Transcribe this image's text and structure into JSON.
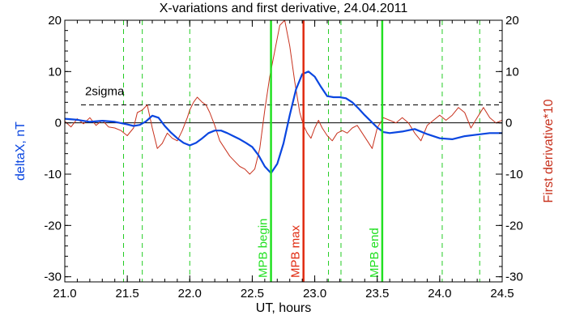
{
  "chart_data": {
    "type": "line",
    "title": "X-variations and first derivative, 24.04.2011",
    "xlabel": "UT, hours",
    "ylabel_left": "deltaX, nT",
    "ylabel_right": "First derivative*10",
    "xlim": [
      21.0,
      24.5
    ],
    "ylim": [
      -31,
      20
    ],
    "x_ticks": [
      "21.0",
      "21.5",
      "22.0",
      "22.5",
      "23.0",
      "23.5",
      "24.0",
      "24.5"
    ],
    "x_tick_values": [
      21.0,
      21.5,
      22.0,
      22.5,
      23.0,
      23.5,
      24.0,
      24.5
    ],
    "y_ticks": [
      "20",
      "10",
      "0",
      "-10",
      "-20",
      "-30"
    ],
    "y_tick_values": [
      20,
      10,
      0,
      -10,
      -20,
      -30
    ],
    "grid": false,
    "colors": {
      "deltaX": "#0a46e0",
      "derivative": "#c8321e",
      "mpb_edges": "#22e022",
      "mpb_max": "#e02a10",
      "dashed_green": "#22cc22",
      "axes": "#000000"
    },
    "threshold": {
      "label": "2sigma",
      "value": 3.5
    },
    "zero_line": 0,
    "dashed_verticals": [
      21.47,
      21.62,
      22.0,
      23.11,
      23.21,
      24.02,
      24.32
    ],
    "markers": [
      {
        "label": "MPB begin",
        "x": 22.65,
        "color": "#22e022"
      },
      {
        "label": "MPB max",
        "x": 22.91,
        "color": "#e02a10"
      },
      {
        "label": "MPB end",
        "x": 23.54,
        "color": "#22e022"
      }
    ],
    "series": [
      {
        "key": "deltaX",
        "x": [
          21.0,
          21.1,
          21.2,
          21.3,
          21.4,
          21.5,
          21.55,
          21.6,
          21.65,
          21.7,
          21.75,
          21.8,
          21.85,
          21.9,
          21.95,
          22.0,
          22.05,
          22.1,
          22.15,
          22.2,
          22.25,
          22.3,
          22.35,
          22.4,
          22.45,
          22.5,
          22.55,
          22.6,
          22.65,
          22.7,
          22.75,
          22.8,
          22.85,
          22.9,
          22.95,
          23.0,
          23.05,
          23.1,
          23.15,
          23.2,
          23.25,
          23.3,
          23.35,
          23.4,
          23.45,
          23.5,
          23.55,
          23.6,
          23.7,
          23.8,
          23.9,
          24.0,
          24.1,
          24.2,
          24.3,
          24.4,
          24.5
        ],
        "values": [
          0.8,
          0.6,
          0.2,
          0.4,
          0.2,
          -0.3,
          -0.6,
          -0.4,
          0.3,
          1.4,
          1.0,
          -0.6,
          -1.9,
          -3.0,
          -3.9,
          -4.4,
          -3.9,
          -3.0,
          -2.0,
          -1.5,
          -1.5,
          -2.0,
          -2.6,
          -3.2,
          -3.9,
          -4.7,
          -6.3,
          -8.5,
          -9.8,
          -8.0,
          -4.0,
          1.5,
          6.5,
          9.5,
          10.0,
          9.0,
          7.0,
          5.2,
          5.0,
          5.0,
          4.8,
          4.0,
          2.8,
          1.5,
          0.3,
          -0.9,
          -1.8,
          -2.0,
          -1.7,
          -1.2,
          -2.2,
          -3.0,
          -3.2,
          -2.6,
          -2.3,
          -2.0,
          -2.0
        ]
      },
      {
        "key": "derivative",
        "x": [
          21.0,
          21.05,
          21.1,
          21.15,
          21.2,
          21.25,
          21.3,
          21.35,
          21.4,
          21.45,
          21.5,
          21.55,
          21.58,
          21.62,
          21.66,
          21.7,
          21.74,
          21.78,
          21.82,
          21.86,
          21.9,
          21.94,
          21.98,
          22.0,
          22.03,
          22.06,
          22.1,
          22.13,
          22.16,
          22.2,
          22.24,
          22.28,
          22.32,
          22.36,
          22.4,
          22.44,
          22.48,
          22.52,
          22.56,
          22.6,
          22.64,
          22.68,
          22.72,
          22.76,
          22.8,
          22.84,
          22.88,
          22.91,
          22.94,
          22.97,
          23.0,
          23.03,
          23.06,
          23.1,
          23.14,
          23.18,
          23.22,
          23.26,
          23.3,
          23.34,
          23.38,
          23.42,
          23.46,
          23.5,
          23.55,
          23.6,
          23.65,
          23.7,
          23.75,
          23.8,
          23.85,
          23.9,
          23.95,
          24.0,
          24.05,
          24.1,
          24.15,
          24.2,
          24.25,
          24.3,
          24.35,
          24.4,
          24.45,
          24.5
        ],
        "values": [
          0.3,
          -0.8,
          0.8,
          -0.2,
          1.0,
          -0.5,
          0.5,
          -0.8,
          -1.0,
          -1.5,
          -2.5,
          -1.0,
          2.0,
          2.5,
          3.5,
          -1.0,
          -5.0,
          -4.0,
          -2.0,
          -3.0,
          -3.5,
          -1.5,
          1.0,
          2.5,
          4.0,
          5.0,
          4.0,
          3.5,
          2.0,
          -0.5,
          -3.5,
          -5.0,
          -6.5,
          -7.5,
          -8.5,
          -9.0,
          -10.0,
          -9.0,
          -5.0,
          2.5,
          9.0,
          14.0,
          19.0,
          20.0,
          15.0,
          8.0,
          2.0,
          -0.5,
          -2.0,
          -3.0,
          -1.0,
          0.5,
          -1.0,
          -2.5,
          -3.5,
          -2.0,
          -1.5,
          -2.0,
          -1.0,
          -0.5,
          -2.0,
          -3.5,
          -5.0,
          -1.0,
          1.0,
          0.5,
          0.0,
          1.0,
          0.0,
          -2.0,
          -3.5,
          -0.5,
          0.5,
          1.5,
          0.5,
          1.5,
          3.0,
          2.0,
          -1.0,
          1.0,
          3.0,
          1.0,
          0.0,
          0.5
        ]
      }
    ]
  }
}
